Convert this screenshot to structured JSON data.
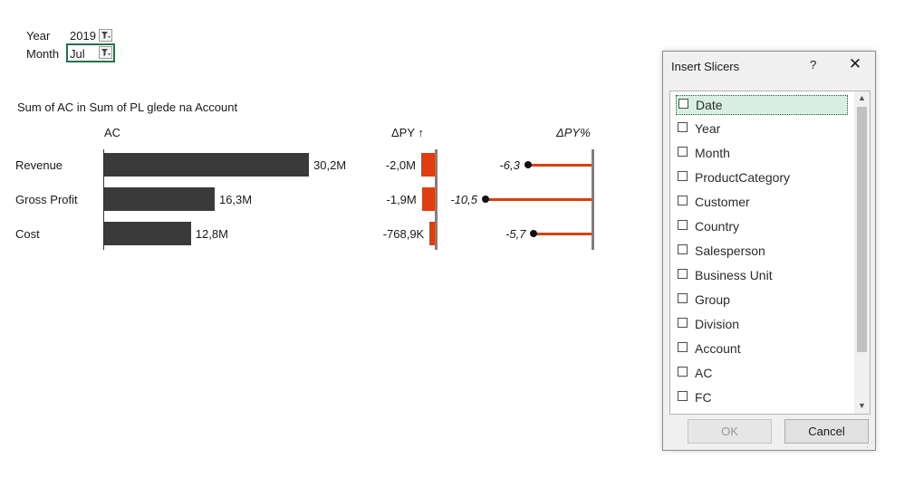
{
  "filters": {
    "year_label": "Year",
    "year_value": "2019",
    "month_label": "Month",
    "month_value": "Jul"
  },
  "chart": {
    "title": "Sum of AC in Sum of PL glede na Account",
    "col_ac": "AC",
    "col_dpy": "ΔPY ↑",
    "col_dpy_pct": "ΔPY%"
  },
  "chart_data": {
    "type": "bar",
    "title": "Sum of AC in Sum of PL glede na Account",
    "categories": [
      "Revenue",
      "Gross Profit",
      "Cost"
    ],
    "series": [
      {
        "name": "AC",
        "values": [
          30.2,
          16.3,
          12.8
        ],
        "labels": [
          "30,2M",
          "16,3M",
          "12,8M"
        ]
      },
      {
        "name": "ΔPY",
        "values": [
          -2.0,
          -1.9,
          -0.7689
        ],
        "labels": [
          "-2,0M",
          "-1,9M",
          "-768,9K"
        ]
      },
      {
        "name": "ΔPY%",
        "values": [
          -6.3,
          -10.5,
          -5.7
        ],
        "labels": [
          "-6,3",
          "-10,5",
          "-5,7"
        ]
      }
    ],
    "colors": {
      "ac": "#3a3a3a",
      "delta": "#e03e0e",
      "dot": "#111111"
    }
  },
  "dialog": {
    "title": "Insert Slicers",
    "help": "?",
    "close": "✕",
    "items": [
      {
        "label": "Date",
        "checked": false,
        "selected": true
      },
      {
        "label": "Year",
        "checked": false
      },
      {
        "label": "Month",
        "checked": false
      },
      {
        "label": "ProductCategory",
        "checked": false
      },
      {
        "label": "Customer",
        "checked": false
      },
      {
        "label": "Country",
        "checked": false
      },
      {
        "label": "Salesperson",
        "checked": false
      },
      {
        "label": "Business Unit",
        "checked": false
      },
      {
        "label": "Group",
        "checked": false
      },
      {
        "label": "Division",
        "checked": false
      },
      {
        "label": "Account",
        "checked": false
      },
      {
        "label": "AC",
        "checked": false
      },
      {
        "label": "FC",
        "checked": false
      }
    ],
    "ok_label": "OK",
    "cancel_label": "Cancel"
  }
}
